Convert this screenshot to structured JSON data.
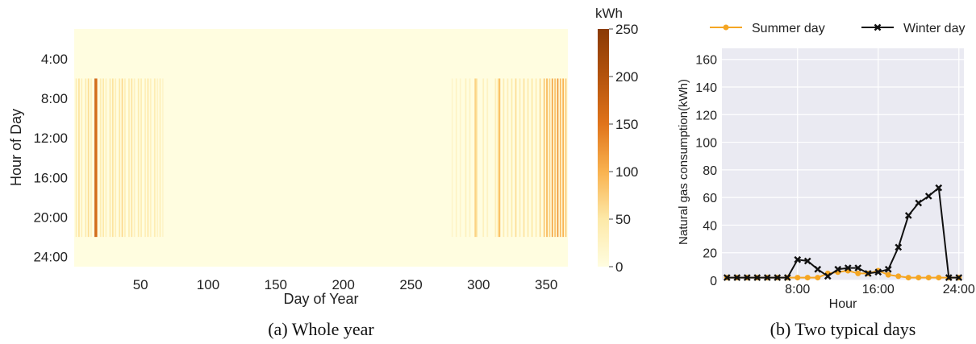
{
  "chart_data": [
    {
      "type": "heatmap",
      "caption": "(a) Whole year",
      "xlabel": "Day of Year",
      "ylabel": "Hour of Day",
      "x_ticks": [
        50,
        100,
        150,
        200,
        250,
        300,
        350
      ],
      "y_ticks": [
        "4:00",
        "8:00",
        "12:00",
        "16:00",
        "20:00",
        "24:00"
      ],
      "xlim": [
        1,
        365
      ],
      "ylim_hours": [
        1,
        24
      ],
      "colorbar": {
        "label": "kWh",
        "min": 0,
        "max": 250,
        "ticks": [
          0,
          50,
          100,
          150,
          200,
          250
        ]
      },
      "colormap": [
        "#fffde0",
        "#fde9a8",
        "#f9b24f",
        "#e0741b",
        "#b4530d",
        "#8a3a05"
      ],
      "operating_hours": [
        6,
        21
      ],
      "heated_days": [
        {
          "day": 2,
          "value": 40
        },
        {
          "day": 4,
          "value": 55
        },
        {
          "day": 6,
          "value": 35
        },
        {
          "day": 9,
          "value": 45
        },
        {
          "day": 11,
          "value": 60
        },
        {
          "day": 13,
          "value": 30
        },
        {
          "day": 16,
          "value": 175
        },
        {
          "day": 17,
          "value": 160
        },
        {
          "day": 20,
          "value": 40
        },
        {
          "day": 22,
          "value": 50
        },
        {
          "day": 24,
          "value": 30
        },
        {
          "day": 27,
          "value": 45
        },
        {
          "day": 29,
          "value": 55
        },
        {
          "day": 31,
          "value": 35
        },
        {
          "day": 34,
          "value": 50
        },
        {
          "day": 36,
          "value": 65
        },
        {
          "day": 38,
          "value": 35
        },
        {
          "day": 41,
          "value": 40
        },
        {
          "day": 43,
          "value": 55
        },
        {
          "day": 45,
          "value": 30
        },
        {
          "day": 48,
          "value": 45
        },
        {
          "day": 50,
          "value": 40
        },
        {
          "day": 53,
          "value": 35
        },
        {
          "day": 55,
          "value": 50
        },
        {
          "day": 57,
          "value": 30
        },
        {
          "day": 60,
          "value": 40
        },
        {
          "day": 62,
          "value": 25
        },
        {
          "day": 64,
          "value": 35
        },
        {
          "day": 66,
          "value": 20
        },
        {
          "day": 280,
          "value": 20
        },
        {
          "day": 283,
          "value": 25
        },
        {
          "day": 286,
          "value": 20
        },
        {
          "day": 290,
          "value": 30
        },
        {
          "day": 293,
          "value": 25
        },
        {
          "day": 297,
          "value": 70
        },
        {
          "day": 298,
          "value": 60
        },
        {
          "day": 303,
          "value": 30
        },
        {
          "day": 306,
          "value": 25
        },
        {
          "day": 312,
          "value": 35
        },
        {
          "day": 314,
          "value": 55
        },
        {
          "day": 315,
          "value": 90
        },
        {
          "day": 318,
          "value": 40
        },
        {
          "day": 321,
          "value": 35
        },
        {
          "day": 324,
          "value": 45
        },
        {
          "day": 327,
          "value": 60
        },
        {
          "day": 330,
          "value": 40
        },
        {
          "day": 333,
          "value": 55
        },
        {
          "day": 336,
          "value": 45
        },
        {
          "day": 339,
          "value": 50
        },
        {
          "day": 342,
          "value": 40
        },
        {
          "day": 345,
          "value": 60
        },
        {
          "day": 348,
          "value": 80
        },
        {
          "day": 350,
          "value": 95
        },
        {
          "day": 352,
          "value": 70
        },
        {
          "day": 354,
          "value": 110
        },
        {
          "day": 356,
          "value": 85
        },
        {
          "day": 358,
          "value": 120
        },
        {
          "day": 360,
          "value": 90
        },
        {
          "day": 362,
          "value": 100
        },
        {
          "day": 364,
          "value": 80
        }
      ]
    },
    {
      "type": "line",
      "caption": "(b) Two typical days",
      "xlabel": "Hour",
      "ylabel": "Natural gas consumption(kWh)",
      "x_ticks": [
        {
          "value": 8,
          "label": "8:00"
        },
        {
          "value": 16,
          "label": "16:00"
        },
        {
          "value": 24,
          "label": "24:00"
        }
      ],
      "y_ticks": [
        0,
        20,
        40,
        60,
        80,
        100,
        120,
        140,
        160
      ],
      "xlim": [
        0.5,
        24.5
      ],
      "ylim": [
        0,
        168
      ],
      "grid": true,
      "legend": "top",
      "x": [
        1,
        2,
        3,
        4,
        5,
        6,
        7,
        8,
        9,
        10,
        11,
        12,
        13,
        14,
        15,
        16,
        17,
        18,
        19,
        20,
        21,
        22,
        23,
        24
      ],
      "series": [
        {
          "name": "Summer day",
          "color": "#f5a623",
          "marker": "circle",
          "values": [
            2,
            2,
            2,
            2,
            2,
            2,
            2,
            2,
            2,
            2,
            5,
            6,
            7,
            5,
            5,
            7,
            4,
            3,
            2,
            2,
            2,
            2,
            2,
            2
          ]
        },
        {
          "name": "Winter day",
          "color": "#111111",
          "marker": "x",
          "values": [
            2,
            2,
            2,
            2,
            2,
            2,
            2,
            15,
            14,
            8,
            3,
            8,
            9,
            9,
            5,
            6,
            8,
            24,
            47,
            56,
            61,
            67,
            2,
            2
          ]
        }
      ]
    }
  ]
}
